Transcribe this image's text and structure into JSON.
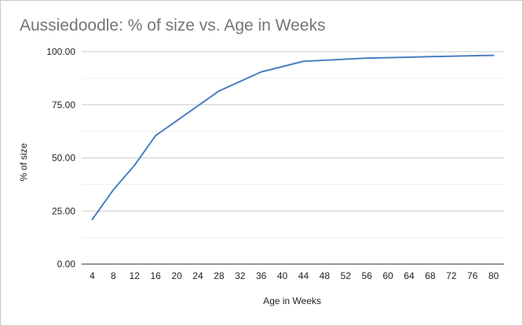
{
  "chart_data": {
    "type": "line",
    "title": "Aussiedoodle: % of size vs. Age in Weeks",
    "xlabel": "Age in Weeks",
    "ylabel": "% of size",
    "x": [
      4,
      8,
      12,
      16,
      20,
      24,
      28,
      32,
      36,
      40,
      44,
      48,
      52,
      56,
      60,
      64,
      68,
      72,
      76,
      80
    ],
    "x_tick_labels": [
      "4",
      "8",
      "12",
      "16",
      "20",
      "24",
      "28",
      "32",
      "36",
      "40",
      "44",
      "48",
      "52",
      "56",
      "60",
      "64",
      "68",
      "72",
      "76",
      "80"
    ],
    "series": [
      {
        "name": "% of size",
        "values": [
          21,
          35,
          46.5,
          60.5,
          67.5,
          74.5,
          81.5,
          86,
          90.5,
          93,
          95.5,
          96,
          96.5,
          97,
          97.2,
          97.4,
          97.7,
          97.9,
          98.1,
          98.3
        ]
      }
    ],
    "ylim": [
      0,
      100
    ],
    "y_ticks": [
      0,
      25,
      50,
      75,
      100
    ],
    "y_tick_labels": [
      "0.00",
      "25.00",
      "50.00",
      "75.00",
      "100.00"
    ],
    "grid": true,
    "minor_grid": true,
    "legend": "none",
    "line_color": "#4a7fc1"
  }
}
